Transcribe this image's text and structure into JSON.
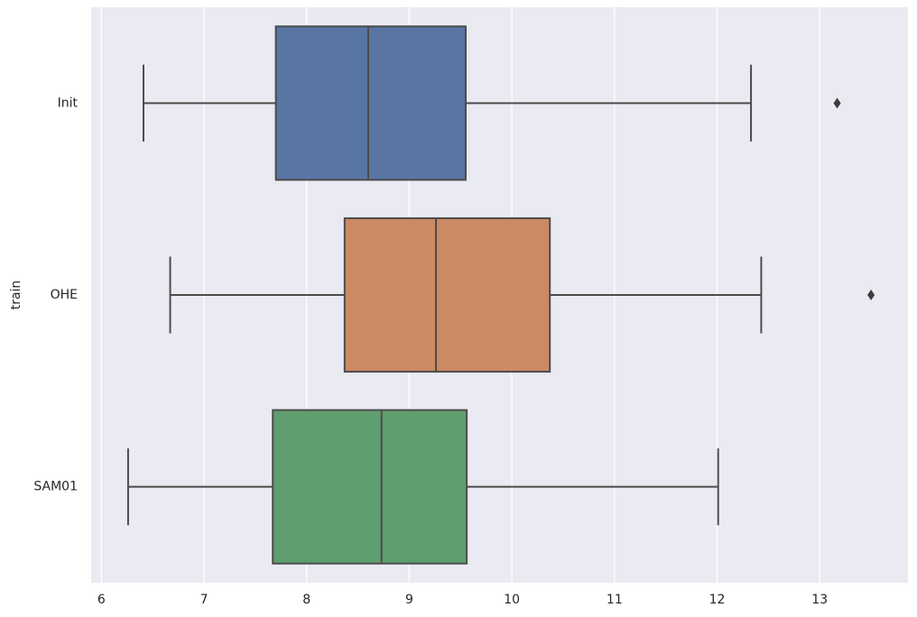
{
  "chart_data": {
    "type": "box",
    "orientation": "horizontal",
    "y_label": "train",
    "categories": [
      "Init",
      "OHE",
      "SAM01"
    ],
    "colors": [
      "#5875a4",
      "#cc8963",
      "#5f9e6e"
    ],
    "boxes": [
      {
        "whislo": 6.41,
        "q1": 7.7,
        "med": 8.6,
        "q3": 9.55,
        "whishi": 12.33,
        "fliers": [
          13.17
        ]
      },
      {
        "whislo": 6.67,
        "q1": 8.37,
        "med": 9.26,
        "q3": 10.37,
        "whishi": 12.43,
        "fliers": [
          13.5
        ]
      },
      {
        "whislo": 6.26,
        "q1": 7.67,
        "med": 8.73,
        "q3": 9.56,
        "whishi": 12.01,
        "fliers": []
      }
    ],
    "xlim": [
      5.9,
      13.86
    ],
    "xticks": [
      6,
      7,
      8,
      9,
      10,
      11,
      12,
      13
    ],
    "grid": true
  }
}
